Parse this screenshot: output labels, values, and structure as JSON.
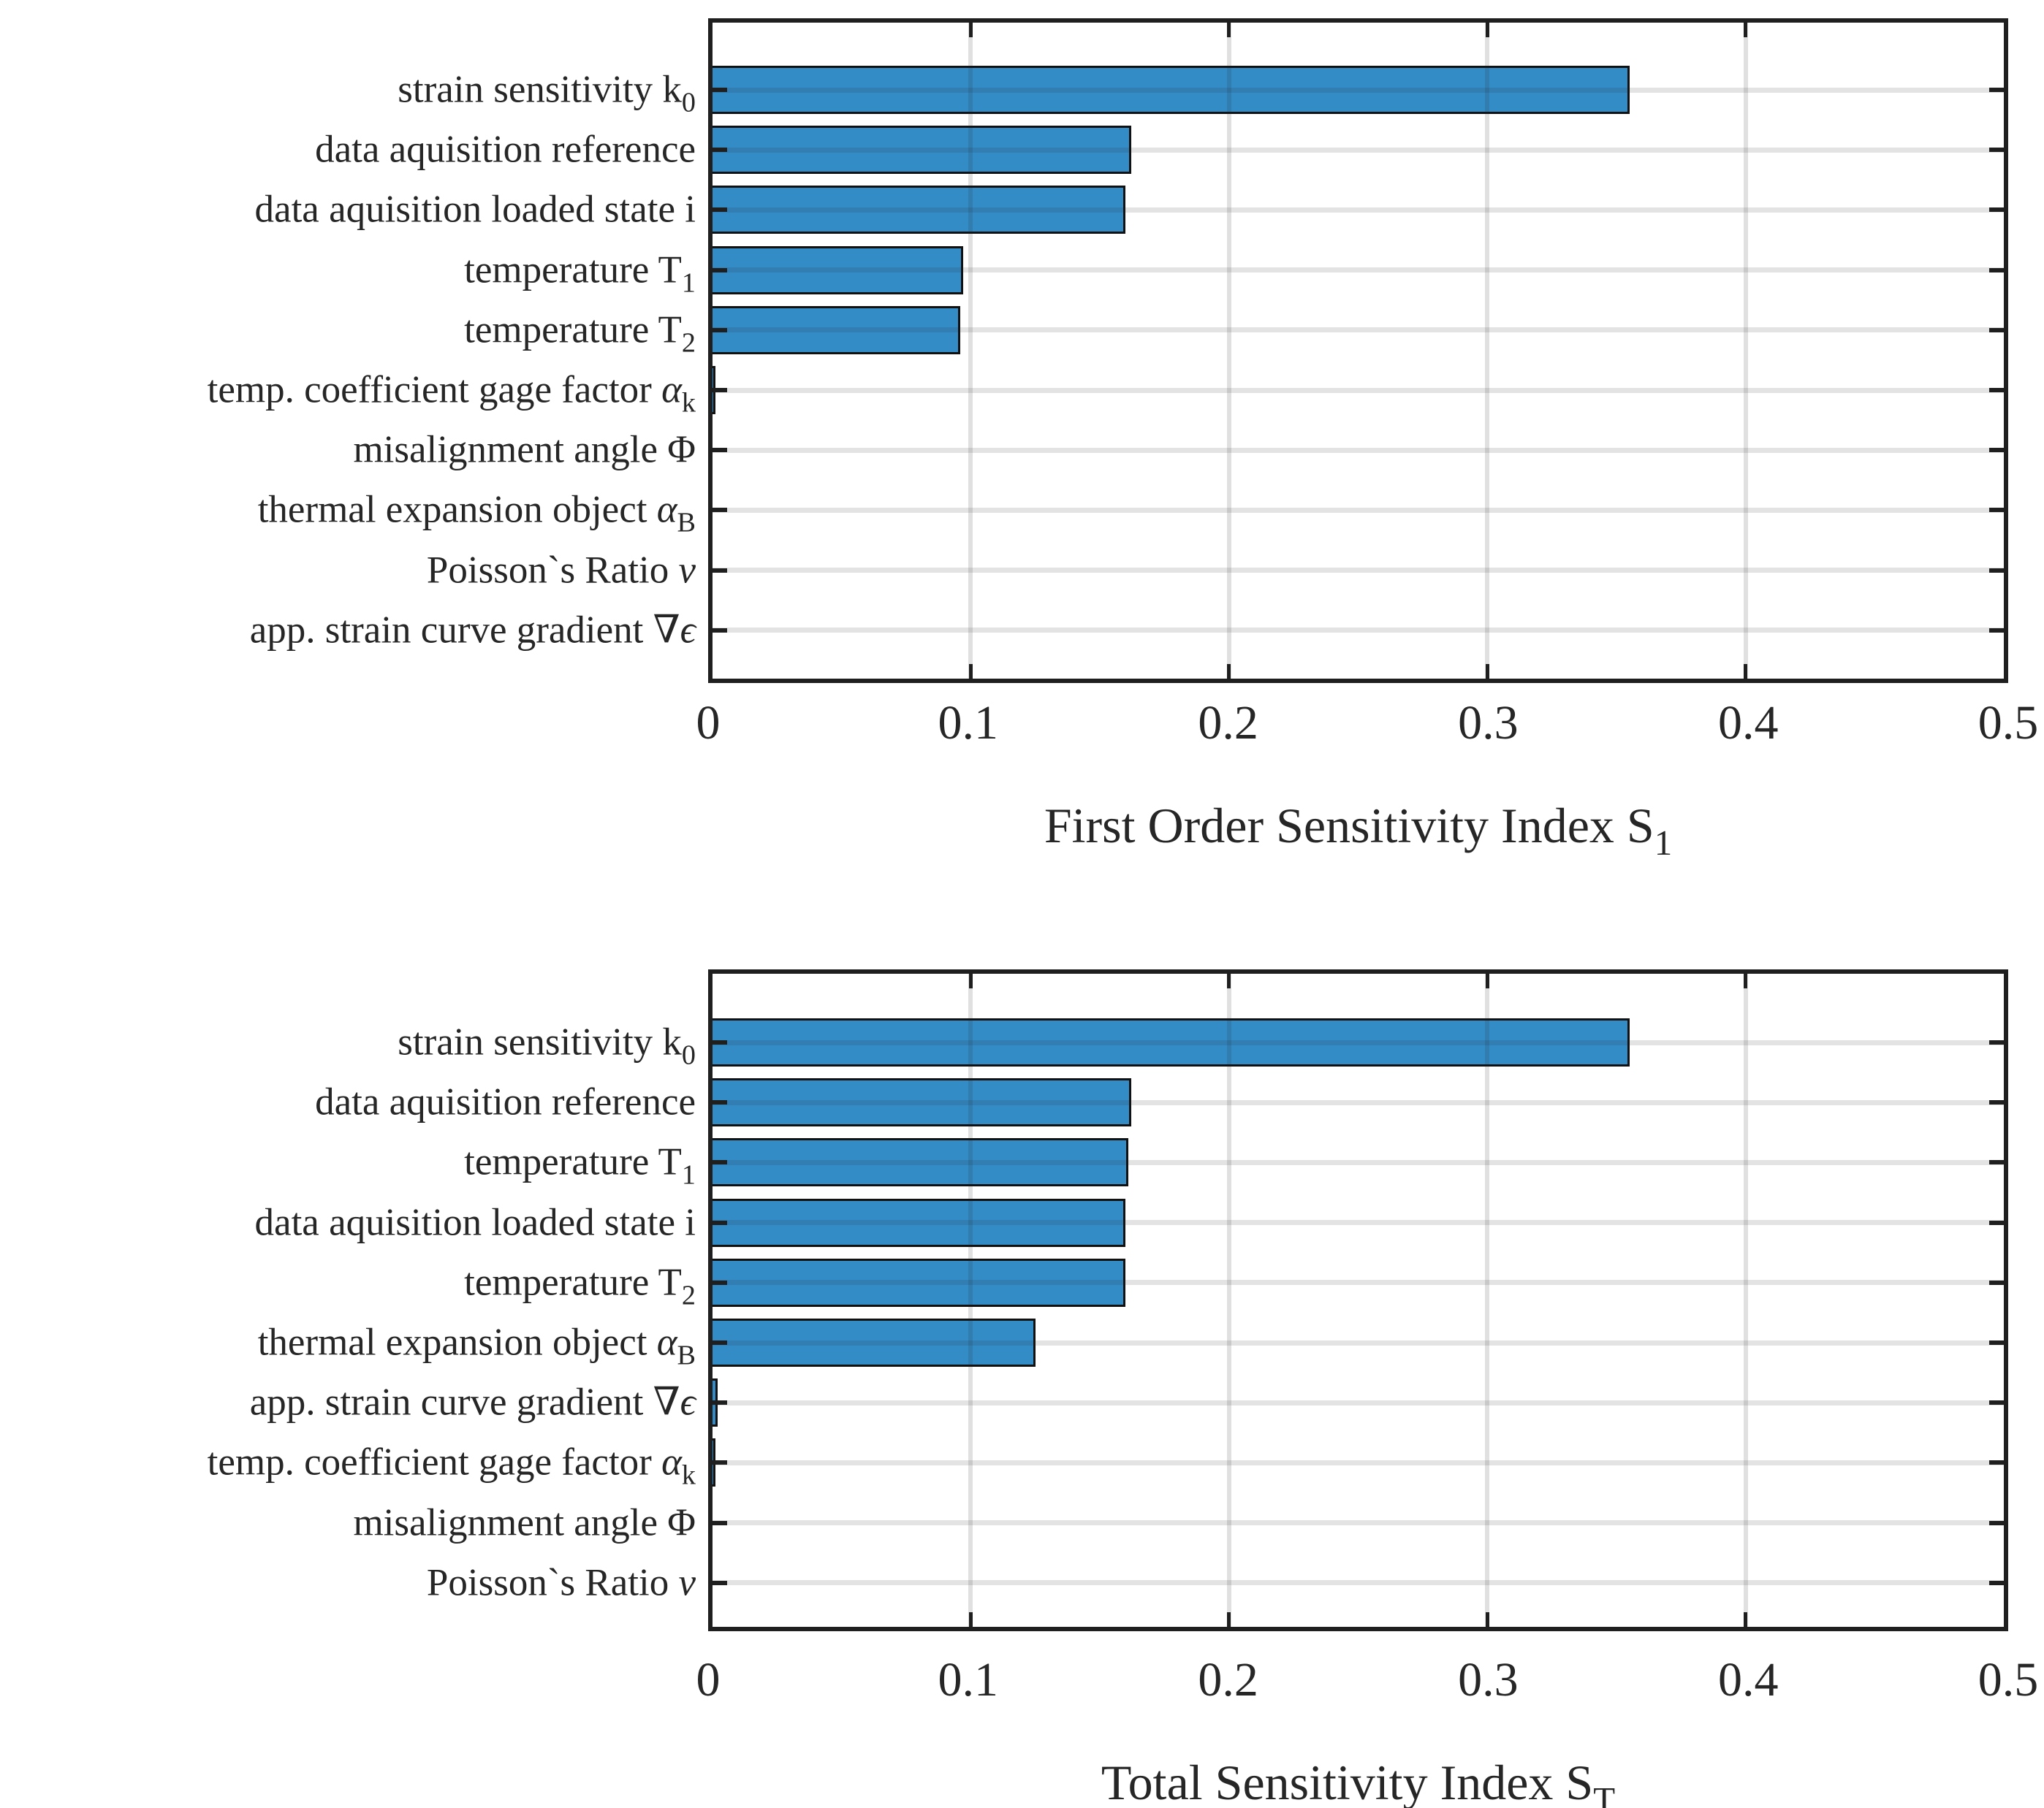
{
  "figure": {
    "background": "#ffffff"
  },
  "colors": {
    "bar_fill": "#348cc7",
    "bar_edge": "#111111",
    "axis": "#1f1f1f",
    "text": "#262626",
    "grid": "rgba(38,38,38,0.14)"
  },
  "chart_data": [
    {
      "type": "bar",
      "orientation": "horizontal",
      "title": "",
      "xlabel": {
        "text": "First Order Sensitivity Index S",
        "subscript": "1"
      },
      "xlim": [
        0,
        0.5
      ],
      "x_ticks": [
        "0",
        "0.1",
        "0.2",
        "0.3",
        "0.4",
        "0.5"
      ],
      "grid": true,
      "legend": false,
      "rows": [
        {
          "text": "strain sensitivity k",
          "italic_symbol": "",
          "subscript": "0",
          "value": 0.355
        },
        {
          "text": "data aquisition reference",
          "italic_symbol": "",
          "subscript": "",
          "value": 0.162
        },
        {
          "text": "data aquisition loaded state i",
          "italic_symbol": "",
          "subscript": "",
          "value": 0.16
        },
        {
          "text": "temperature T",
          "italic_symbol": "",
          "subscript": "1",
          "value": 0.097
        },
        {
          "text": "temperature T",
          "italic_symbol": "",
          "subscript": "2",
          "value": 0.096
        },
        {
          "text": "temp. coefficient gage factor ",
          "italic_symbol": "α",
          "subscript": "k",
          "value": 0.001
        },
        {
          "text": "misalignment angle Φ",
          "italic_symbol": "",
          "subscript": "",
          "value": 0
        },
        {
          "text": "thermal expansion object ",
          "italic_symbol": "α",
          "subscript": "B",
          "value": 0
        },
        {
          "text": "Poisson`s Ratio ",
          "italic_symbol": "ν",
          "subscript": "",
          "value": 0
        },
        {
          "text": "app. strain curve gradient ∇",
          "italic_symbol": "ϵ",
          "subscript": "",
          "value": 0
        }
      ]
    },
    {
      "type": "bar",
      "orientation": "horizontal",
      "title": "",
      "xlabel": {
        "text": "Total Sensitivity Index S",
        "subscript": "T"
      },
      "xlim": [
        0,
        0.5
      ],
      "x_ticks": [
        "0",
        "0.1",
        "0.2",
        "0.3",
        "0.4",
        "0.5"
      ],
      "grid": true,
      "legend": false,
      "rows": [
        {
          "text": "strain sensitivity k",
          "italic_symbol": "",
          "subscript": "0",
          "value": 0.355
        },
        {
          "text": "data aquisition reference",
          "italic_symbol": "",
          "subscript": "",
          "value": 0.162
        },
        {
          "text": "temperature T",
          "italic_symbol": "",
          "subscript": "1",
          "value": 0.161
        },
        {
          "text": "data aquisition loaded state i",
          "italic_symbol": "",
          "subscript": "",
          "value": 0.16
        },
        {
          "text": "temperature T",
          "italic_symbol": "",
          "subscript": "2",
          "value": 0.16
        },
        {
          "text": "thermal expansion object ",
          "italic_symbol": "α",
          "subscript": "B",
          "value": 0.125
        },
        {
          "text": "app. strain curve gradient ∇",
          "italic_symbol": "ϵ",
          "subscript": "",
          "value": 0.002
        },
        {
          "text": "temp. coefficient gage factor ",
          "italic_symbol": "α",
          "subscript": "k",
          "value": 0.001
        },
        {
          "text": "misalignment angle Φ",
          "italic_symbol": "",
          "subscript": "",
          "value": 0
        },
        {
          "text": "Poisson`s Ratio ",
          "italic_symbol": "ν",
          "subscript": "",
          "value": 0
        }
      ]
    }
  ]
}
